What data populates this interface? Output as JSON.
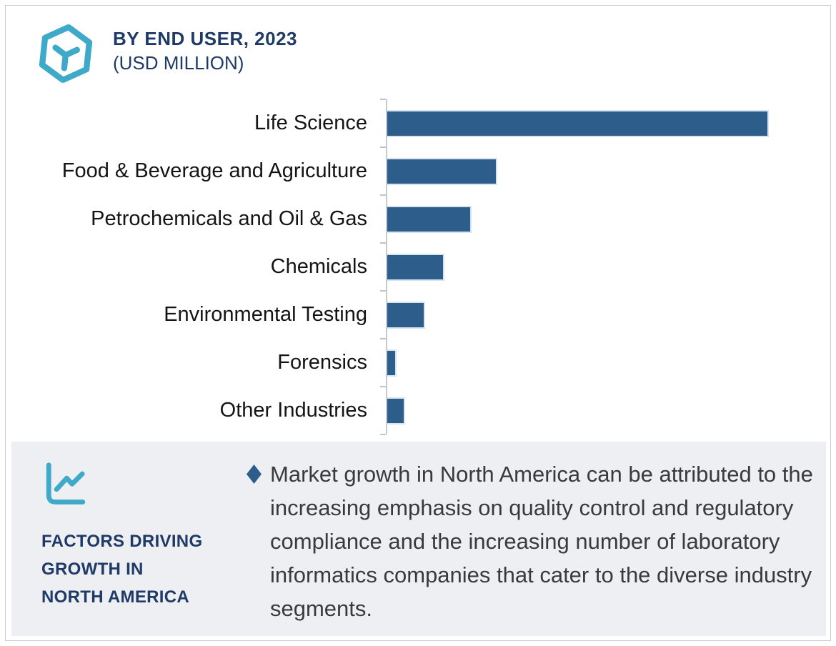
{
  "header": {
    "logo_icon": "hexagon-molecule-icon",
    "title_line1": "BY END USER, 2023",
    "title_line2": "(USD MILLION)"
  },
  "chart_data": {
    "type": "bar",
    "orientation": "horizontal",
    "title": "BY END USER, 2023 (USD MILLION)",
    "value_unit": "USD Million",
    "categories": [
      "Life Science",
      "Food & Beverage and Agriculture",
      "Petrochemicals and Oil & Gas",
      "Chemicals",
      "Environmental Testing",
      "Forensics",
      "Other Industries"
    ],
    "values_pct_of_max": [
      100,
      28.6,
      21.8,
      14.7,
      9.6,
      2.1,
      4.3
    ],
    "value_axis_tick_labels_visible": false,
    "value_labels_visible": false,
    "grid": "off",
    "legend_position": "none",
    "bar_color": "#2D5D8B"
  },
  "factors_panel": {
    "icon": "line-chart-icon",
    "caption_lines": [
      "FACTORS DRIVING",
      "GROWTH IN",
      "NORTH AMERICA"
    ],
    "bullet_icon": "diamond-bullet",
    "bullet_text": "Market growth in North America can be attributed to the increasing emphasis on quality control and regulatory compliance and the increasing number of laboratory informatics companies that cater to the diverse industry segments."
  },
  "colors": {
    "bar_blue": "#2D5D8B",
    "navy_text": "#1F3A66",
    "icon_teal": "#3FA9C9",
    "panel_bg": "#EDEFF3",
    "axis_gray": "#C9C9C9",
    "body_text": "#3A3A3A",
    "label_text": "#141414"
  }
}
